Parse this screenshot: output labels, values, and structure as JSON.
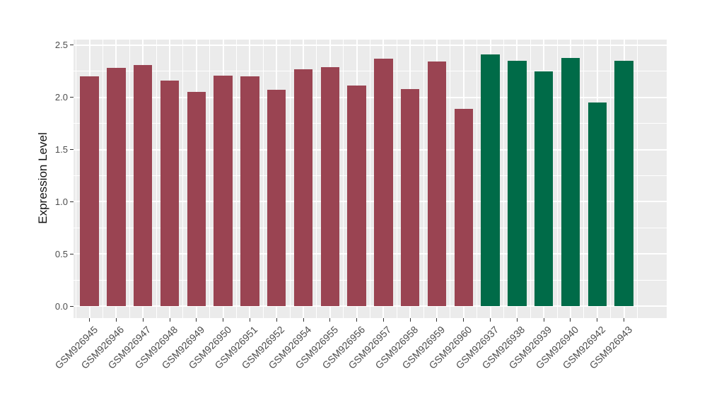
{
  "figure": {
    "background_color": "#FFFFFF",
    "panel_background_color": "#EBEBEB",
    "grid_color": "#FFFFFF",
    "tick_mark_color": "#333333",
    "tick_label_color": "#4D4D4D",
    "axis_title_color": "#111111"
  },
  "chart_data": {
    "type": "bar",
    "title": "",
    "xlabel": "",
    "ylabel": "Expression Level",
    "categories": [
      "GSM926945",
      "GSM926946",
      "GSM926947",
      "GSM926948",
      "GSM926949",
      "GSM926950",
      "GSM926951",
      "GSM926952",
      "GSM926954",
      "GSM926955",
      "GSM926956",
      "GSM926957",
      "GSM926958",
      "GSM926959",
      "GSM926960",
      "GSM926937",
      "GSM926938",
      "GSM926939",
      "GSM926940",
      "GSM926942",
      "GSM926943"
    ],
    "values": [
      2.2,
      2.28,
      2.31,
      2.16,
      2.05,
      2.21,
      2.2,
      2.07,
      2.27,
      2.29,
      2.11,
      2.37,
      2.08,
      2.34,
      1.89,
      2.41,
      2.35,
      2.25,
      2.38,
      1.95,
      2.35
    ],
    "groups": [
      "red",
      "red",
      "red",
      "red",
      "red",
      "red",
      "red",
      "red",
      "red",
      "red",
      "red",
      "red",
      "red",
      "red",
      "red",
      "green",
      "green",
      "green",
      "green",
      "green",
      "green"
    ],
    "group_colors": {
      "red": "#9A4452",
      "green": "#006B48"
    },
    "yticks": [
      0.0,
      0.5,
      1.0,
      1.5,
      2.0,
      2.5
    ],
    "ytick_labels": [
      "0.0",
      "0.5",
      "1.0",
      "1.5",
      "2.0",
      "2.5"
    ],
    "ylim": [
      -0.115,
      2.553
    ],
    "bar_width_fraction": 0.7,
    "grid": true,
    "legend": "none"
  }
}
